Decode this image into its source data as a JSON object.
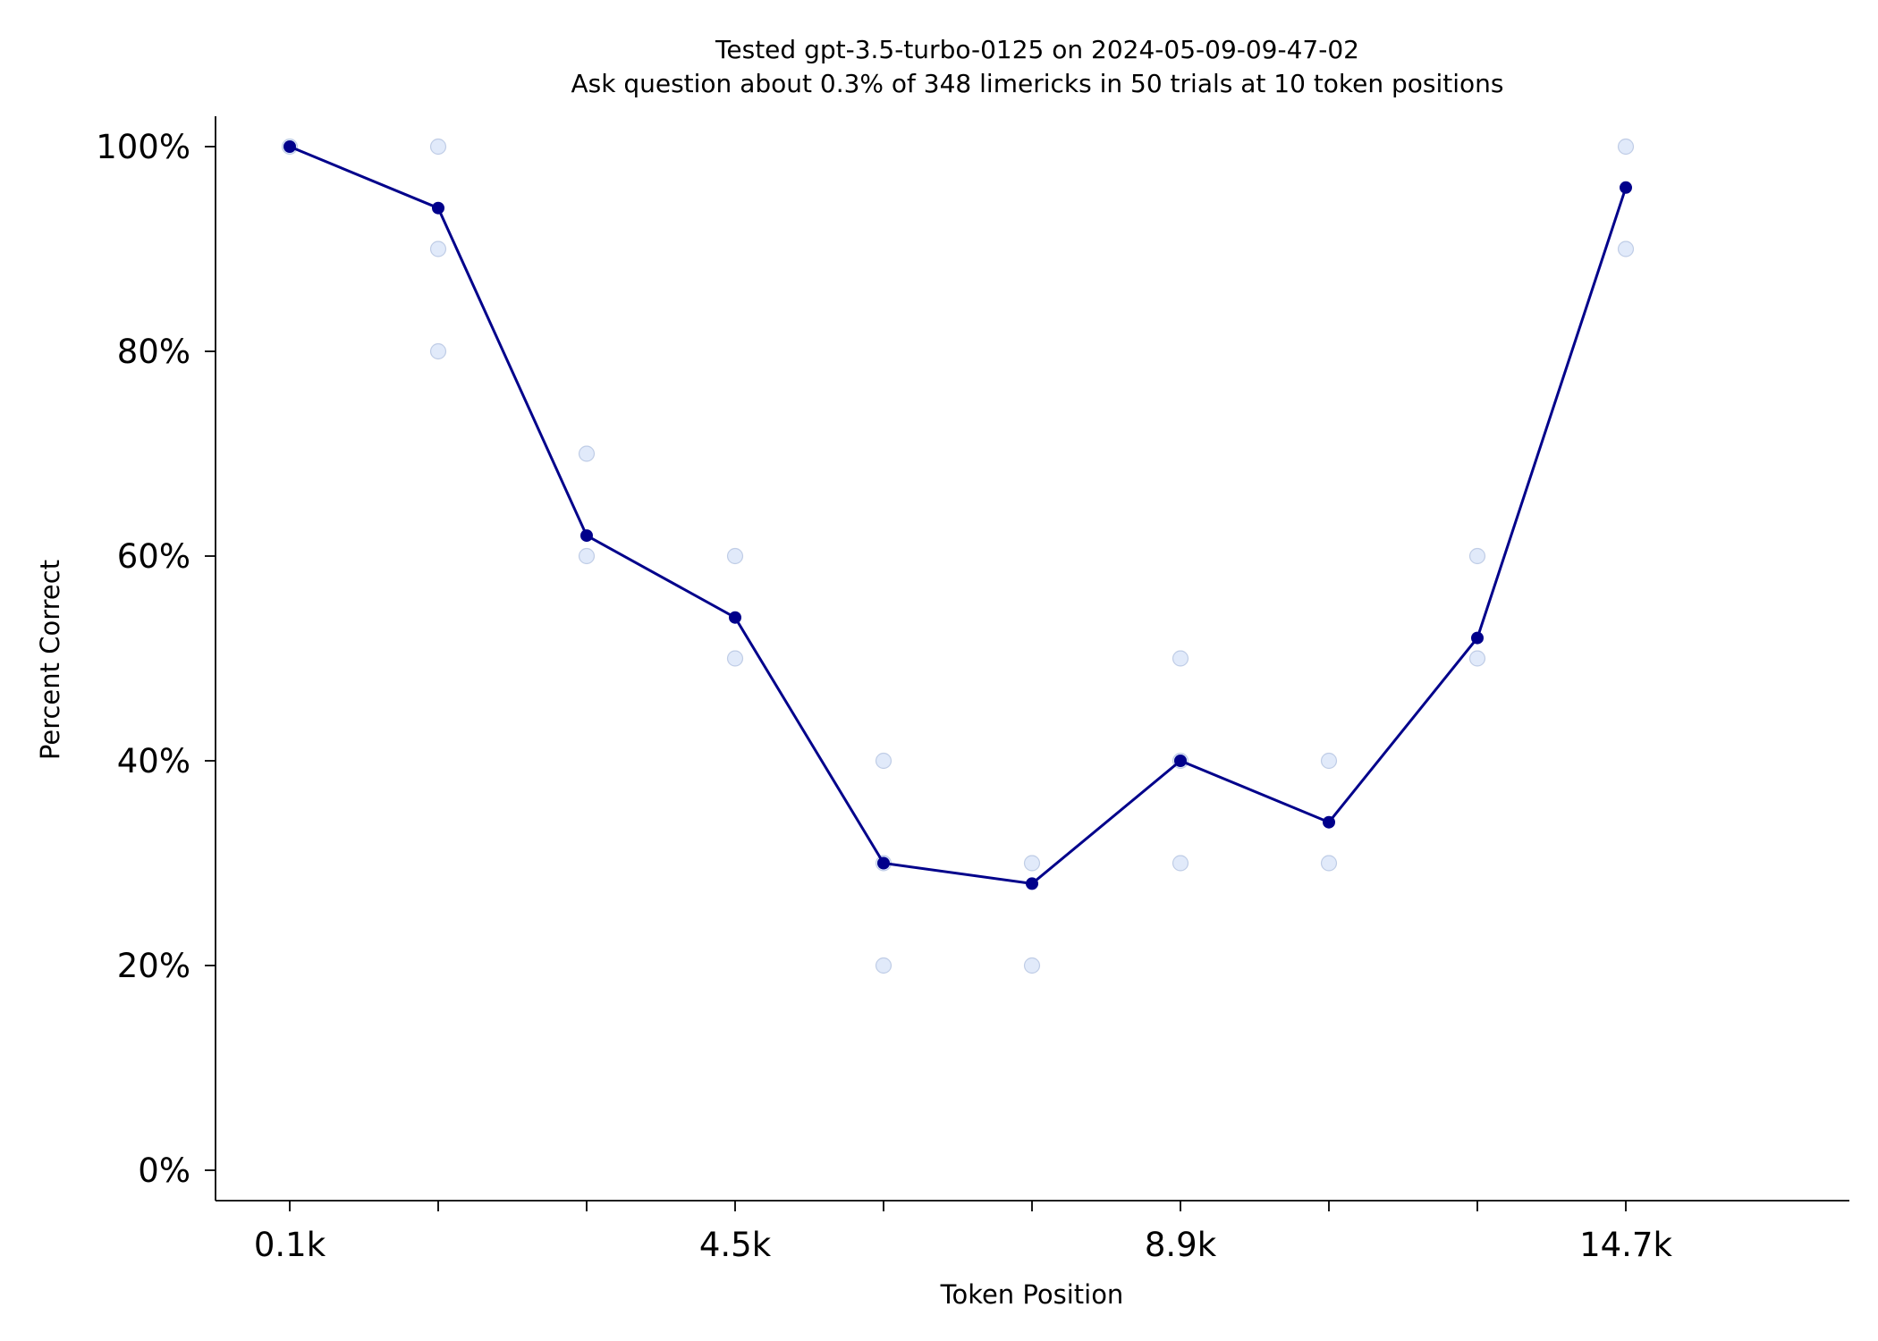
{
  "chart_data": {
    "type": "line",
    "title": "Tested gpt-3.5-turbo-0125 on 2024-05-09-09-47-02",
    "subtitle": "Ask question about 0.3% of 348 limericks in 50 trials at 10 token positions",
    "xlabel": "Token Position",
    "ylabel": "Percent Correct",
    "x": [
      0,
      1,
      2,
      3,
      4,
      5,
      6,
      7,
      8,
      9
    ],
    "x_tick_labels": [
      "0.1k",
      "",
      "",
      "4.5k",
      "",
      "",
      "8.9k",
      "",
      "",
      "14.7k"
    ],
    "y_ticks": [
      0,
      20,
      40,
      60,
      80,
      100
    ],
    "y_tick_labels": [
      "0%",
      "20%",
      "40%",
      "60%",
      "80%",
      "100%"
    ],
    "ylim": [
      -3,
      103
    ],
    "series": [
      {
        "values": [
          100,
          94,
          62,
          54,
          30,
          28,
          40,
          34,
          52,
          96
        ],
        "color": "#00008b"
      }
    ],
    "trials": [
      {
        "x": 0,
        "values": [
          100
        ]
      },
      {
        "x": 1,
        "values": [
          100,
          90,
          80
        ]
      },
      {
        "x": 2,
        "values": [
          70,
          60
        ]
      },
      {
        "x": 3,
        "values": [
          60,
          50
        ]
      },
      {
        "x": 4,
        "values": [
          40,
          30,
          20
        ]
      },
      {
        "x": 5,
        "values": [
          30,
          20
        ]
      },
      {
        "x": 6,
        "values": [
          50,
          40,
          30
        ]
      },
      {
        "x": 7,
        "values": [
          40,
          30
        ]
      },
      {
        "x": 8,
        "values": [
          60,
          50
        ]
      },
      {
        "x": 9,
        "values": [
          100,
          90
        ]
      }
    ],
    "trial_color": "#c8d8f5",
    "grid": false
  }
}
